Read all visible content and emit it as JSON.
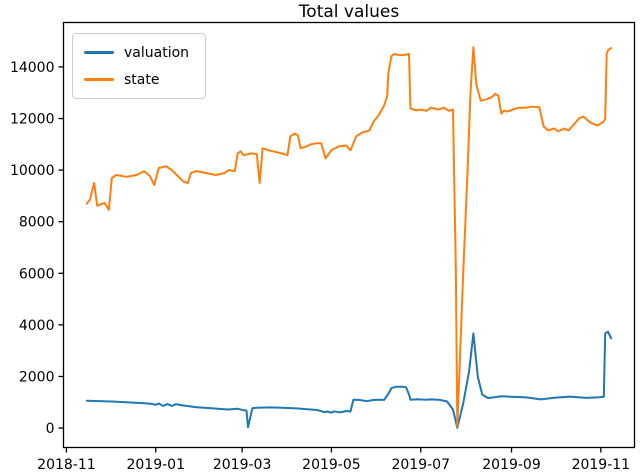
{
  "chart_data": {
    "type": "line",
    "title": "Total values",
    "xlabel": "",
    "ylabel": "",
    "grid": false,
    "legend_position": "upper left",
    "x_axis_note": "x values are day offsets from 2018-11-01 as implied by tick labels",
    "xlim": [
      -2,
      388
    ],
    "ylim": [
      -754,
      15723
    ],
    "x_ticks": [
      {
        "day": 0,
        "label": "2018-11"
      },
      {
        "day": 61,
        "label": "2019-01"
      },
      {
        "day": 120,
        "label": "2019-03"
      },
      {
        "day": 181,
        "label": "2019-05"
      },
      {
        "day": 242,
        "label": "2019-07"
      },
      {
        "day": 304,
        "label": "2019-09"
      },
      {
        "day": 365,
        "label": "2019-11"
      }
    ],
    "y_ticks": [
      0,
      2000,
      4000,
      6000,
      8000,
      10000,
      12000,
      14000
    ],
    "series": [
      {
        "name": "valuation",
        "color": "#1f77b4",
        "points": [
          [
            14,
            1060
          ],
          [
            31,
            1030
          ],
          [
            44,
            990
          ],
          [
            53,
            960
          ],
          [
            58,
            940
          ],
          [
            61,
            900
          ],
          [
            63,
            950
          ],
          [
            66,
            860
          ],
          [
            69,
            930
          ],
          [
            72,
            860
          ],
          [
            75,
            930
          ],
          [
            78,
            890
          ],
          [
            89,
            810
          ],
          [
            99,
            770
          ],
          [
            110,
            720
          ],
          [
            117,
            750
          ],
          [
            121,
            690
          ],
          [
            123,
            680
          ],
          [
            124,
            30
          ],
          [
            127,
            770
          ],
          [
            130,
            790
          ],
          [
            140,
            800
          ],
          [
            147,
            790
          ],
          [
            157,
            760
          ],
          [
            167,
            720
          ],
          [
            171,
            700
          ],
          [
            174,
            660
          ],
          [
            176,
            610
          ],
          [
            178,
            640
          ],
          [
            181,
            600
          ],
          [
            183,
            650
          ],
          [
            186,
            610
          ],
          [
            188,
            620
          ],
          [
            191,
            660
          ],
          [
            194,
            640
          ],
          [
            196,
            1100
          ],
          [
            200,
            1090
          ],
          [
            205,
            1040
          ],
          [
            210,
            1090
          ],
          [
            213,
            1100
          ],
          [
            217,
            1090
          ],
          [
            220,
            1340
          ],
          [
            222,
            1550
          ],
          [
            225,
            1600
          ],
          [
            230,
            1600
          ],
          [
            232,
            1580
          ],
          [
            234,
            1300
          ],
          [
            235,
            1100
          ],
          [
            240,
            1120
          ],
          [
            245,
            1100
          ],
          [
            249,
            1110
          ],
          [
            255,
            1090
          ],
          [
            260,
            1030
          ],
          [
            264,
            715
          ],
          [
            267,
            10
          ],
          [
            271,
            950
          ],
          [
            275,
            2200
          ],
          [
            278,
            3670
          ],
          [
            281,
            1990
          ],
          [
            284,
            1300
          ],
          [
            288,
            1160
          ],
          [
            297,
            1230
          ],
          [
            304,
            1210
          ],
          [
            314,
            1190
          ],
          [
            324,
            1110
          ],
          [
            334,
            1180
          ],
          [
            344,
            1220
          ],
          [
            355,
            1170
          ],
          [
            363,
            1190
          ],
          [
            367,
            1210
          ],
          [
            368,
            3670
          ],
          [
            370,
            3730
          ],
          [
            372,
            3480
          ]
        ]
      },
      {
        "name": "state",
        "color": "#ff7f0e",
        "points": [
          [
            14,
            8700
          ],
          [
            16,
            8850
          ],
          [
            19,
            9500
          ],
          [
            21,
            8620
          ],
          [
            26,
            8730
          ],
          [
            29,
            8460
          ],
          [
            31,
            9690
          ],
          [
            34,
            9810
          ],
          [
            41,
            9740
          ],
          [
            48,
            9810
          ],
          [
            53,
            9960
          ],
          [
            57,
            9770
          ],
          [
            60,
            9420
          ],
          [
            63,
            10080
          ],
          [
            68,
            10150
          ],
          [
            72,
            10000
          ],
          [
            76,
            9770
          ],
          [
            80,
            9550
          ],
          [
            83,
            9500
          ],
          [
            85,
            9890
          ],
          [
            89,
            9960
          ],
          [
            95,
            9890
          ],
          [
            102,
            9810
          ],
          [
            108,
            9890
          ],
          [
            111,
            10000
          ],
          [
            115,
            9960
          ],
          [
            117,
            10650
          ],
          [
            119,
            10730
          ],
          [
            121,
            10580
          ],
          [
            126,
            10650
          ],
          [
            130,
            10620
          ],
          [
            132,
            9500
          ],
          [
            134,
            10850
          ],
          [
            138,
            10770
          ],
          [
            141,
            10730
          ],
          [
            147,
            10650
          ],
          [
            151,
            10580
          ],
          [
            153,
            11310
          ],
          [
            156,
            11420
          ],
          [
            158,
            11350
          ],
          [
            160,
            10850
          ],
          [
            164,
            10920
          ],
          [
            167,
            11000
          ],
          [
            171,
            11040
          ],
          [
            174,
            11040
          ],
          [
            177,
            10460
          ],
          [
            181,
            10770
          ],
          [
            186,
            10920
          ],
          [
            191,
            10960
          ],
          [
            194,
            10770
          ],
          [
            198,
            11310
          ],
          [
            202,
            11460
          ],
          [
            207,
            11540
          ],
          [
            210,
            11900
          ],
          [
            213,
            12100
          ],
          [
            217,
            12500
          ],
          [
            219,
            12850
          ],
          [
            220,
            13800
          ],
          [
            222,
            14430
          ],
          [
            224,
            14500
          ],
          [
            228,
            14450
          ],
          [
            232,
            14480
          ],
          [
            234,
            14500
          ],
          [
            235,
            12390
          ],
          [
            239,
            12310
          ],
          [
            242,
            12350
          ],
          [
            246,
            12300
          ],
          [
            249,
            12420
          ],
          [
            254,
            12350
          ],
          [
            258,
            12420
          ],
          [
            261,
            12300
          ],
          [
            264,
            12350
          ],
          [
            266,
            6000
          ],
          [
            267,
            60
          ],
          [
            271,
            6000
          ],
          [
            274,
            10000
          ],
          [
            276,
            13000
          ],
          [
            278,
            14770
          ],
          [
            280,
            13300
          ],
          [
            283,
            12690
          ],
          [
            286,
            12730
          ],
          [
            288,
            12770
          ],
          [
            291,
            12850
          ],
          [
            293,
            12960
          ],
          [
            295,
            12890
          ],
          [
            297,
            12190
          ],
          [
            299,
            12310
          ],
          [
            301,
            12270
          ],
          [
            305,
            12350
          ],
          [
            309,
            12420
          ],
          [
            314,
            12420
          ],
          [
            318,
            12460
          ],
          [
            323,
            12440
          ],
          [
            326,
            11690
          ],
          [
            329,
            11540
          ],
          [
            333,
            11615
          ],
          [
            336,
            11500
          ],
          [
            340,
            11615
          ],
          [
            343,
            11540
          ],
          [
            346,
            11730
          ],
          [
            350,
            12000
          ],
          [
            353,
            12080
          ],
          [
            357,
            11885
          ],
          [
            359,
            11810
          ],
          [
            363,
            11730
          ],
          [
            365,
            11810
          ],
          [
            367,
            11885
          ],
          [
            368,
            12000
          ],
          [
            369,
            14500
          ],
          [
            370,
            14650
          ],
          [
            372,
            14730
          ]
        ]
      }
    ]
  }
}
